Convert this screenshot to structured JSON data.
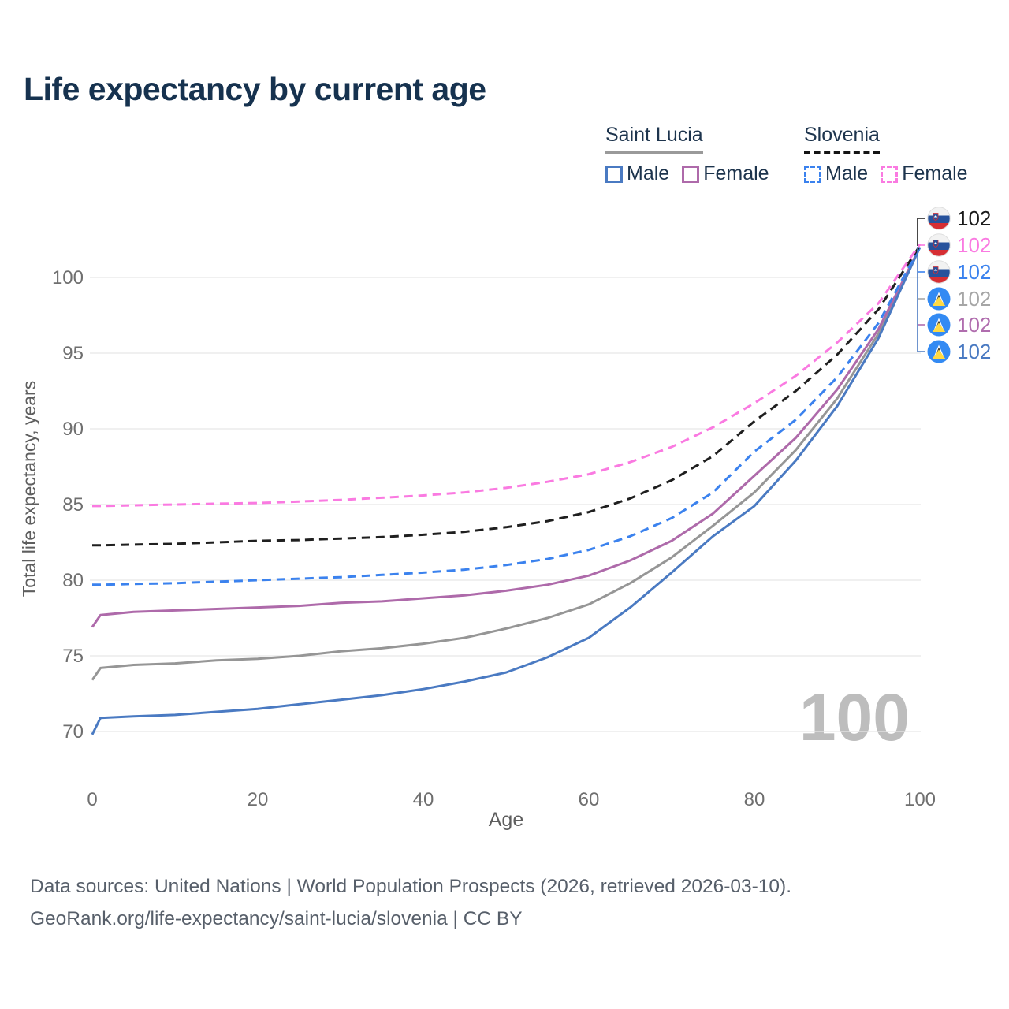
{
  "title": "Life expectancy by current age",
  "watermark": "100",
  "legend": {
    "groups": [
      {
        "country": "Saint Lucia",
        "line_style": "solid",
        "line_color": "#9a9a9a",
        "items": [
          {
            "label": "Male",
            "color": "#4a7ac2",
            "dash": false
          },
          {
            "label": "Female",
            "color": "#ae6aaa",
            "dash": false
          }
        ]
      },
      {
        "country": "Slovenia",
        "line_style": "dashed",
        "line_color": "#141414",
        "items": [
          {
            "label": "Male",
            "color": "#3b82ee",
            "dash": true
          },
          {
            "label": "Female",
            "color": "#fa7ae1",
            "dash": true
          }
        ]
      }
    ]
  },
  "right_labels": [
    {
      "flag": "slovenia-flag",
      "value": "102",
      "color": "#1a1a1a"
    },
    {
      "flag": "slovenia-flag",
      "value": "102",
      "color": "#fa7ae1"
    },
    {
      "flag": "slovenia-flag",
      "value": "102",
      "color": "#3b82ee"
    },
    {
      "flag": "saint-lucia-flag",
      "value": "102",
      "color": "#a6a6a6"
    },
    {
      "flag": "saint-lucia-flag",
      "value": "102",
      "color": "#b06dae"
    },
    {
      "flag": "saint-lucia-flag",
      "value": "102",
      "color": "#4a7ac2"
    }
  ],
  "footer": {
    "line1": "Data sources: United Nations | World Population Prospects (2026, retrieved 2026-03-10).",
    "line2": "GeoRank.org/life-expectancy/saint-lucia/slovenia | CC BY"
  },
  "chart_data": {
    "type": "line",
    "title": "Life expectancy by current age",
    "xlabel": "Age",
    "ylabel": "Total life expectancy, years",
    "xlim": [
      0,
      100
    ],
    "ylim": [
      69,
      102.5
    ],
    "xticks": [
      0,
      20,
      40,
      60,
      80,
      100
    ],
    "yticks": [
      70,
      75,
      80,
      85,
      90,
      95,
      100
    ],
    "grid": "horizontal",
    "legend_position": "top-right",
    "x": [
      0,
      1,
      5,
      10,
      15,
      20,
      25,
      30,
      35,
      40,
      45,
      50,
      55,
      60,
      65,
      70,
      75,
      80,
      85,
      90,
      95,
      100
    ],
    "series": [
      {
        "name": "Saint Lucia",
        "sex": "all",
        "color": "#969696",
        "dash": "solid",
        "values": [
          73.4,
          74.2,
          74.4,
          74.5,
          74.7,
          74.8,
          75.0,
          75.3,
          75.5,
          75.8,
          76.2,
          76.8,
          77.5,
          78.4,
          79.8,
          81.5,
          83.6,
          85.8,
          88.6,
          92.0,
          96.3,
          102.0
        ]
      },
      {
        "name": "Saint Lucia Female",
        "sex": "female",
        "color": "#ae6aaa",
        "dash": "solid",
        "values": [
          76.9,
          77.7,
          77.9,
          78.0,
          78.1,
          78.2,
          78.3,
          78.5,
          78.6,
          78.8,
          79.0,
          79.3,
          79.7,
          80.3,
          81.3,
          82.6,
          84.4,
          86.9,
          89.4,
          92.6,
          96.6,
          102.0
        ]
      },
      {
        "name": "Saint Lucia Male",
        "sex": "male",
        "color": "#4a7ac2",
        "dash": "solid",
        "values": [
          69.8,
          70.9,
          71.0,
          71.1,
          71.3,
          71.5,
          71.8,
          72.1,
          72.4,
          72.8,
          73.3,
          73.9,
          74.9,
          76.2,
          78.2,
          80.5,
          82.9,
          84.9,
          87.9,
          91.5,
          96.0,
          102.0
        ]
      },
      {
        "name": "Slovenia Male",
        "sex": "male",
        "color": "#3b82ee",
        "dash": "dashed",
        "values": [
          79.7,
          79.7,
          79.75,
          79.8,
          79.9,
          80.0,
          80.1,
          80.2,
          80.35,
          80.5,
          80.7,
          81.0,
          81.4,
          82.0,
          82.9,
          84.1,
          85.8,
          88.5,
          90.6,
          93.4,
          97.0,
          102.0
        ]
      },
      {
        "name": "Slovenia",
        "sex": "all",
        "color": "#1f1f1f",
        "dash": "dashed",
        "values": [
          82.3,
          82.3,
          82.35,
          82.4,
          82.5,
          82.6,
          82.65,
          82.75,
          82.85,
          83.0,
          83.2,
          83.5,
          83.9,
          84.5,
          85.4,
          86.6,
          88.2,
          90.5,
          92.5,
          94.9,
          97.9,
          102.1
        ]
      },
      {
        "name": "Slovenia Female",
        "sex": "female",
        "color": "#fa7ae1",
        "dash": "dashed",
        "values": [
          84.9,
          84.9,
          84.95,
          85.0,
          85.05,
          85.1,
          85.2,
          85.3,
          85.45,
          85.6,
          85.8,
          86.1,
          86.5,
          87.0,
          87.8,
          88.8,
          90.1,
          91.7,
          93.5,
          95.7,
          98.3,
          102.2
        ]
      }
    ]
  }
}
